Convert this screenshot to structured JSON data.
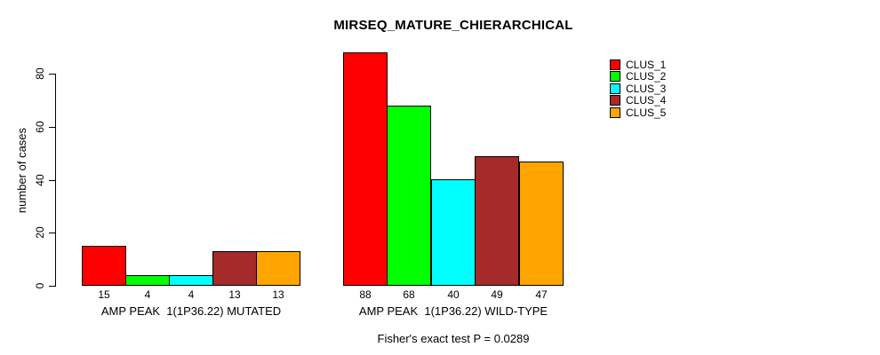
{
  "title": "MIRSEQ_MATURE_CHIERARCHICAL",
  "y_axis": {
    "label": "number of cases",
    "tick_labels": [
      "0",
      "20",
      "40",
      "60",
      "80"
    ]
  },
  "legend": {
    "items": [
      {
        "label": "CLUS_1",
        "color": "#FF0000"
      },
      {
        "label": "CLUS_2",
        "color": "#00FF00"
      },
      {
        "label": "CLUS_3",
        "color": "#00FFFF"
      },
      {
        "label": "CLUS_4",
        "color": "#A52A2A"
      },
      {
        "label": "CLUS_5",
        "color": "#FFA500"
      }
    ]
  },
  "footnote": "Fisher's exact test P = 0.0289",
  "chart_data": {
    "type": "bar",
    "title": "MIRSEQ_MATURE_CHIERARCHICAL",
    "xlabel": "",
    "ylabel": "number of cases",
    "ylim": [
      0,
      88
    ],
    "yticks": [
      0,
      20,
      40,
      60,
      80
    ],
    "grid": false,
    "bar_outline_color": "#000000",
    "legend_position": "top-right",
    "legend_labels": [
      "CLUS_1",
      "CLUS_2",
      "CLUS_3",
      "CLUS_4",
      "CLUS_5"
    ],
    "series_colors": [
      "#FF0000",
      "#00FF00",
      "#00FFFF",
      "#A52A2A",
      "#FFA500"
    ],
    "categories": [
      "AMP PEAK  1(1P36.22) MUTATED",
      "AMP PEAK  1(1P36.22) WILD-TYPE"
    ],
    "series": [
      {
        "name": "CLUS_1",
        "color": "#FF0000",
        "values": [
          15,
          88
        ]
      },
      {
        "name": "CLUS_2",
        "color": "#00FF00",
        "values": [
          4,
          68
        ]
      },
      {
        "name": "CLUS_3",
        "color": "#00FFFF",
        "values": [
          4,
          40
        ]
      },
      {
        "name": "CLUS_4",
        "color": "#A52A2A",
        "values": [
          13,
          49
        ]
      },
      {
        "name": "CLUS_5",
        "color": "#FFA500",
        "values": [
          13,
          47
        ]
      }
    ],
    "bar_value_labels": [
      [
        15,
        4,
        4,
        13,
        13
      ],
      [
        88,
        68,
        40,
        49,
        47
      ]
    ],
    "annotation": "Fisher's exact test P = 0.0289"
  }
}
